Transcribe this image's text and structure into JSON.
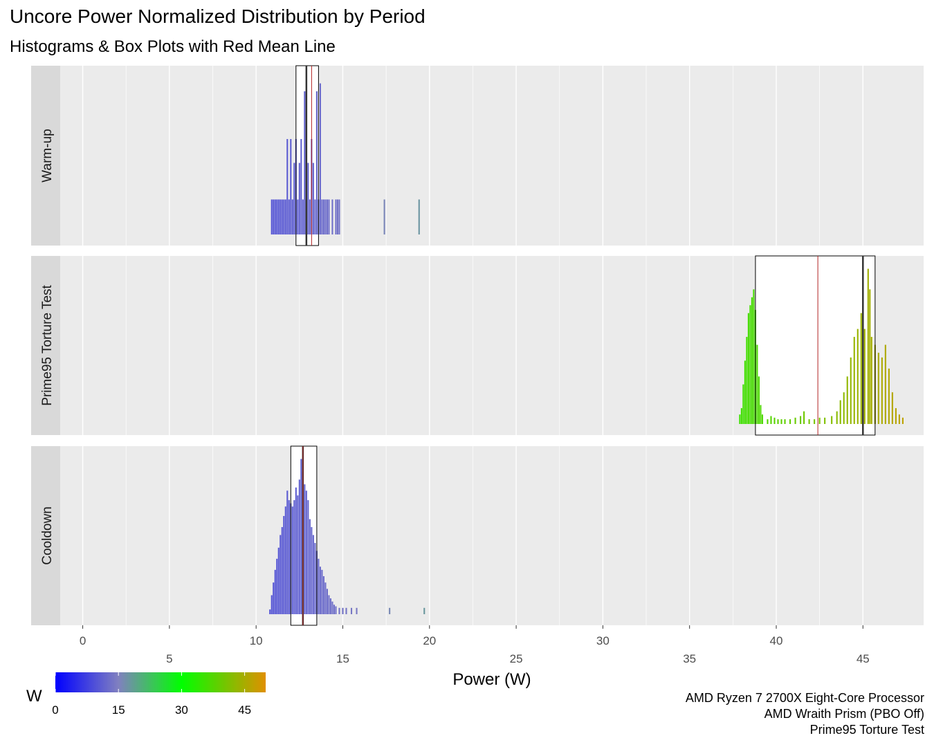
{
  "chart_data": {
    "type": "histogram",
    "title": "Uncore Power Normalized Distribution by Period",
    "subtitle": "Histograms & Box Plots with Red Mean Line",
    "xlabel": "Power (W)",
    "xlim": [
      -1.3,
      48.5
    ],
    "x_ticks_upper": [
      0,
      10,
      20,
      30,
      40
    ],
    "x_ticks_lower": [
      5,
      15,
      25,
      35,
      45
    ],
    "grid": true,
    "panels": [
      {
        "label": "Warm-up",
        "box": {
          "q1": 12.3,
          "median": 12.9,
          "q3": 13.6,
          "mean": 13.2
        },
        "hist": [
          [
            10.9,
            0.22
          ],
          [
            11.0,
            0.22
          ],
          [
            11.1,
            0.22
          ],
          [
            11.2,
            0.22
          ],
          [
            11.3,
            0.22
          ],
          [
            11.4,
            0.22
          ],
          [
            11.5,
            0.22
          ],
          [
            11.6,
            0.22
          ],
          [
            11.7,
            0.22
          ],
          [
            11.8,
            0.6
          ],
          [
            11.9,
            0.22
          ],
          [
            12.0,
            0.6
          ],
          [
            12.1,
            0.22
          ],
          [
            12.2,
            0.45
          ],
          [
            12.3,
            0.6
          ],
          [
            12.4,
            0.22
          ],
          [
            12.5,
            0.45
          ],
          [
            12.6,
            0.6
          ],
          [
            12.7,
            0.22
          ],
          [
            12.8,
            0.9
          ],
          [
            12.9,
            0.22
          ],
          [
            13.0,
            0.45
          ],
          [
            13.1,
            0.22
          ],
          [
            13.2,
            0.6
          ],
          [
            13.3,
            0.45
          ],
          [
            13.4,
            0.22
          ],
          [
            13.5,
            0.9
          ],
          [
            13.6,
            0.22
          ],
          [
            13.7,
            0.95
          ],
          [
            13.8,
            0.22
          ],
          [
            13.9,
            0.22
          ],
          [
            14.0,
            0.22
          ],
          [
            14.1,
            0.22
          ],
          [
            14.2,
            0.22
          ],
          [
            14.4,
            0.22
          ],
          [
            14.6,
            0.22
          ],
          [
            14.7,
            0.22
          ],
          [
            14.8,
            0.22
          ],
          [
            17.4,
            0.22
          ],
          [
            19.4,
            0.22
          ]
        ]
      },
      {
        "label": "Prime95 Torture Test",
        "box": {
          "q1": 38.8,
          "median": 45.0,
          "q3": 45.7,
          "mean": 42.4
        },
        "hist": [
          [
            37.9,
            0.06
          ],
          [
            38.0,
            0.1
          ],
          [
            38.1,
            0.25
          ],
          [
            38.2,
            0.4
          ],
          [
            38.3,
            0.55
          ],
          [
            38.4,
            0.7
          ],
          [
            38.5,
            0.75
          ],
          [
            38.6,
            0.8
          ],
          [
            38.7,
            0.85
          ],
          [
            38.8,
            0.72
          ],
          [
            38.9,
            0.5
          ],
          [
            39.0,
            0.3
          ],
          [
            39.1,
            0.12
          ],
          [
            39.2,
            0.06
          ],
          [
            39.5,
            0.03
          ],
          [
            39.7,
            0.05
          ],
          [
            39.9,
            0.04
          ],
          [
            40.1,
            0.03
          ],
          [
            40.3,
            0.03
          ],
          [
            40.5,
            0.03
          ],
          [
            40.8,
            0.03
          ],
          [
            41.1,
            0.04
          ],
          [
            41.4,
            0.05
          ],
          [
            41.6,
            0.08
          ],
          [
            41.9,
            0.03
          ],
          [
            42.2,
            0.03
          ],
          [
            42.5,
            0.04
          ],
          [
            42.8,
            0.04
          ],
          [
            43.2,
            0.05
          ],
          [
            43.5,
            0.08
          ],
          [
            43.7,
            0.15
          ],
          [
            43.9,
            0.2
          ],
          [
            44.1,
            0.3
          ],
          [
            44.3,
            0.42
          ],
          [
            44.5,
            0.55
          ],
          [
            44.7,
            0.6
          ],
          [
            44.9,
            0.7
          ],
          [
            45.0,
            0.75
          ],
          [
            45.1,
            0.6
          ],
          [
            45.3,
            0.98
          ],
          [
            45.4,
            0.85
          ],
          [
            45.5,
            0.55
          ],
          [
            45.7,
            0.5
          ],
          [
            45.9,
            0.45
          ],
          [
            46.1,
            0.42
          ],
          [
            46.3,
            0.5
          ],
          [
            46.5,
            0.35
          ],
          [
            46.7,
            0.2
          ],
          [
            46.9,
            0.1
          ],
          [
            47.1,
            0.06
          ],
          [
            47.3,
            0.04
          ]
        ]
      },
      {
        "label": "Cooldown",
        "box": {
          "q1": 12.0,
          "median": 12.7,
          "q3": 13.5,
          "mean": 12.7
        },
        "hist": [
          [
            10.8,
            0.03
          ],
          [
            10.9,
            0.12
          ],
          [
            11.0,
            0.2
          ],
          [
            11.1,
            0.28
          ],
          [
            11.2,
            0.35
          ],
          [
            11.3,
            0.42
          ],
          [
            11.4,
            0.5
          ],
          [
            11.5,
            0.55
          ],
          [
            11.6,
            0.62
          ],
          [
            11.7,
            0.68
          ],
          [
            11.8,
            0.78
          ],
          [
            11.9,
            0.72
          ],
          [
            12.0,
            0.7
          ],
          [
            12.1,
            0.68
          ],
          [
            12.2,
            0.72
          ],
          [
            12.3,
            0.8
          ],
          [
            12.4,
            0.75
          ],
          [
            12.5,
            0.85
          ],
          [
            12.6,
            0.98
          ],
          [
            12.7,
            0.9
          ],
          [
            12.8,
            0.82
          ],
          [
            12.9,
            0.78
          ],
          [
            13.0,
            0.72
          ],
          [
            13.1,
            0.6
          ],
          [
            13.2,
            0.55
          ],
          [
            13.3,
            0.5
          ],
          [
            13.4,
            0.45
          ],
          [
            13.5,
            0.4
          ],
          [
            13.6,
            0.35
          ],
          [
            13.7,
            0.3
          ],
          [
            13.8,
            0.28
          ],
          [
            13.9,
            0.24
          ],
          [
            14.0,
            0.2
          ],
          [
            14.1,
            0.16
          ],
          [
            14.2,
            0.12
          ],
          [
            14.3,
            0.1
          ],
          [
            14.4,
            0.08
          ],
          [
            14.5,
            0.06
          ],
          [
            14.6,
            0.05
          ],
          [
            14.8,
            0.04
          ],
          [
            15.0,
            0.04
          ],
          [
            15.2,
            0.04
          ],
          [
            15.5,
            0.04
          ],
          [
            15.8,
            0.04
          ],
          [
            17.7,
            0.04
          ],
          [
            19.7,
            0.04
          ]
        ]
      }
    ],
    "legend": {
      "title": "W",
      "placement": "bottom-left",
      "ticks": [
        0,
        15,
        30,
        45
      ],
      "range": [
        0,
        50
      ],
      "gradient": [
        "#0000ff",
        "#8080c0",
        "#00ff00",
        "#e09000"
      ]
    },
    "caption": [
      "AMD Ryzen 7 2700X Eight-Core Processor",
      "AMD Wraith Prism (PBO Off)",
      "Prime95 Torture Test"
    ],
    "colors": {
      "panel_bg": "#ebebeb",
      "strip_bg": "#d9d9d9",
      "grid": "#ffffff",
      "mean_line": "#b22222",
      "median_line": "#333333"
    }
  }
}
